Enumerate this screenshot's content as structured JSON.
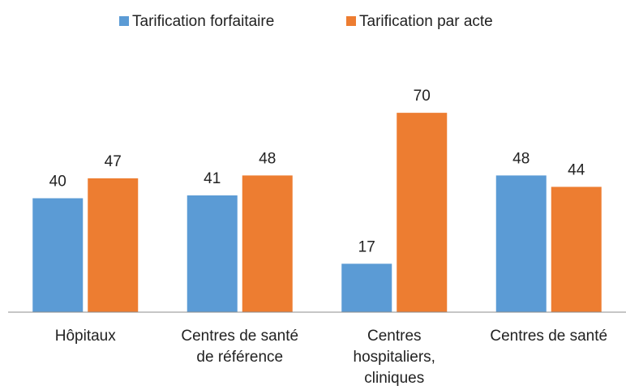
{
  "chart_data": {
    "type": "bar",
    "categories": [
      [
        "Hôpitaux"
      ],
      [
        "Centres de santé",
        "de référence"
      ],
      [
        "Centres",
        "hospitaliers,",
        "cliniques"
      ],
      [
        "Centres de santé"
      ]
    ],
    "series": [
      {
        "name": "Tarification forfaitaire",
        "color": "#5b9bd5",
        "values": [
          40,
          41,
          17,
          48
        ]
      },
      {
        "name": "Tarification par acte",
        "color": "#ed7d31",
        "values": [
          47,
          48,
          70,
          44
        ]
      }
    ],
    "ylim": [
      0,
      80
    ],
    "legend": "top"
  }
}
